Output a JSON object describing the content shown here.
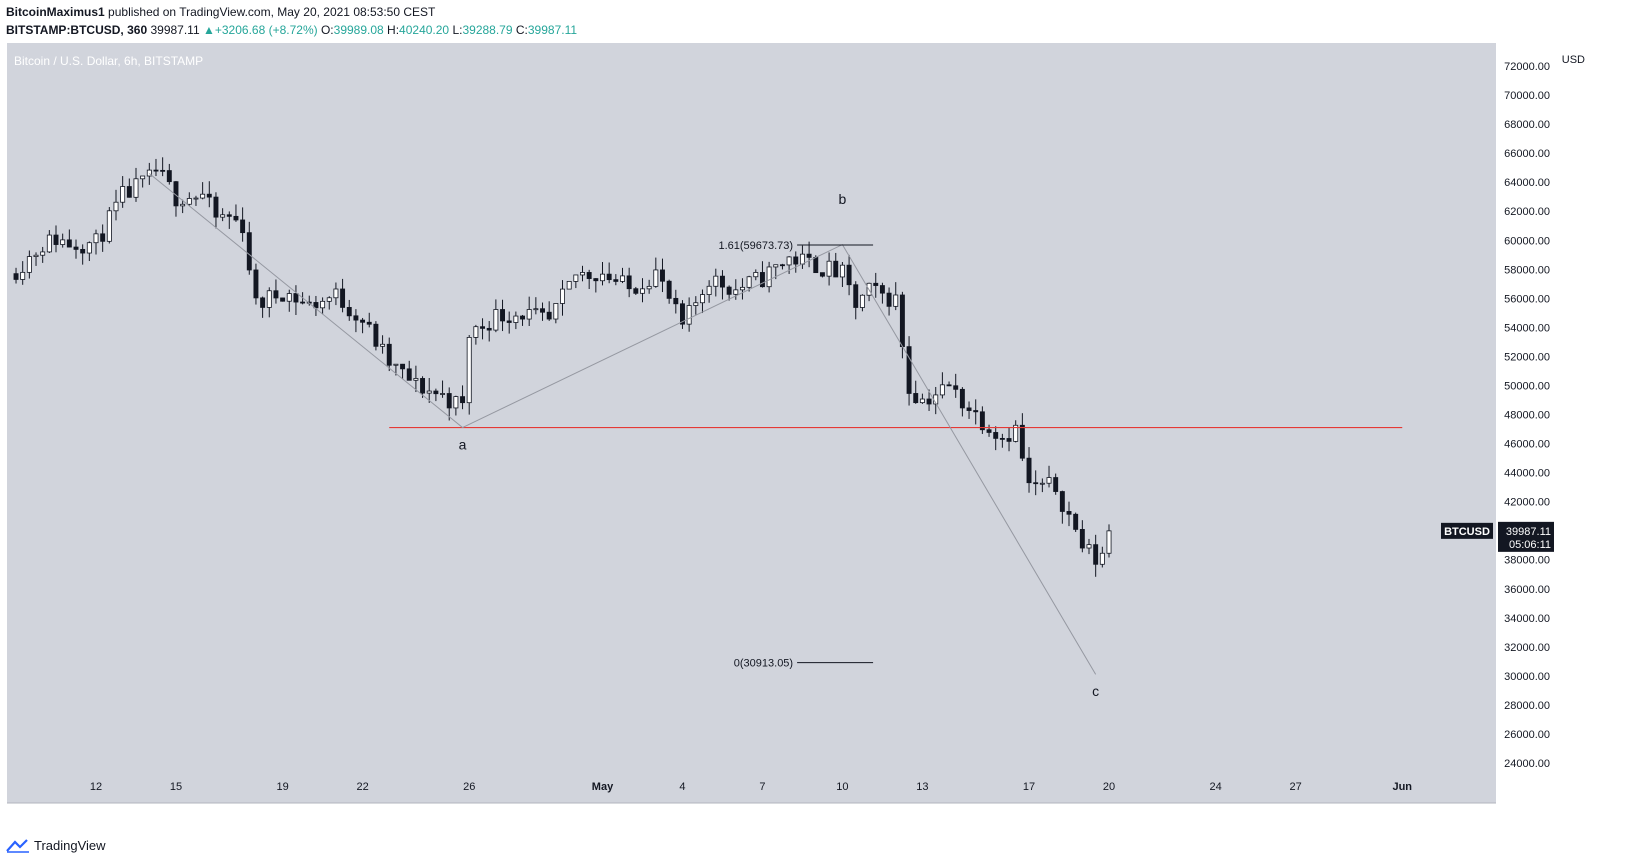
{
  "header": {
    "author": "BitcoinMaximus1",
    "published_text": "published on TradingView.com, May 20, 2021 08:53:50 CEST",
    "symbol": "BITSTAMP:BTCUSD, 360",
    "last": "39987.11",
    "change_arrow": "▲",
    "change": "+3206.68 (+8.72%)",
    "o_label": "O:",
    "o": "39989.08",
    "h_label": "H:",
    "h": "40240.20",
    "l_label": "L:",
    "l": "39288.79",
    "c_label": "C:",
    "c": "39987.11"
  },
  "footer": {
    "brand": "TradingView",
    "icon": "tradingview-logo-icon"
  },
  "colors": {
    "background": "#d1d4dc",
    "up": "#ffffff",
    "down": "#131722",
    "resistance": "#e53935",
    "wave": "#9598a1",
    "text": "#131722"
  },
  "chart_data": {
    "type": "candlestick",
    "title": "Bitcoin / U.S. Dollar, 6h, BITSTAMP",
    "currency_label": "USD",
    "ylim": [
      23000,
      73000
    ],
    "y_ticks": [
      24000,
      26000,
      28000,
      30000,
      32000,
      34000,
      36000,
      38000,
      40000,
      42000,
      44000,
      46000,
      48000,
      50000,
      52000,
      54000,
      56000,
      58000,
      60000,
      62000,
      64000,
      66000,
      68000,
      70000,
      72000
    ],
    "y_tick_labels": [
      "24000.00",
      "26000.00",
      "28000.00",
      "30000.00",
      "32000.00",
      "34000.00",
      "36000.00",
      "38000.00",
      "40000.00",
      "42000.00",
      "44000.00",
      "46000.00",
      "48000.00",
      "50000.00",
      "52000.00",
      "54000.00",
      "56000.00",
      "58000.00",
      "60000.00",
      "62000.00",
      "64000.00",
      "66000.00",
      "68000.00",
      "70000.00",
      "72000.00"
    ],
    "x_range": [
      "2021-04-09",
      "2021-06-01"
    ],
    "x_ticks": [
      {
        "date": "2021-04-12",
        "label": "12"
      },
      {
        "date": "2021-04-15",
        "label": "15"
      },
      {
        "date": "2021-04-19",
        "label": "19"
      },
      {
        "date": "2021-04-22",
        "label": "22"
      },
      {
        "date": "2021-04-26",
        "label": "26"
      },
      {
        "date": "2021-05-01",
        "label": "May"
      },
      {
        "date": "2021-05-04",
        "label": "4"
      },
      {
        "date": "2021-05-07",
        "label": "7"
      },
      {
        "date": "2021-05-10",
        "label": "10"
      },
      {
        "date": "2021-05-13",
        "label": "13"
      },
      {
        "date": "2021-05-17",
        "label": "17"
      },
      {
        "date": "2021-05-20",
        "label": "20"
      },
      {
        "date": "2021-05-24",
        "label": "24"
      },
      {
        "date": "2021-05-27",
        "label": "27"
      },
      {
        "date": "2021-05-31",
        "label": "Jun"
      }
    ],
    "candle_interval": "6h",
    "close_path": [
      {
        "date": "2021-04-09",
        "close": 58000
      },
      {
        "date": "2021-04-10",
        "close": 59700
      },
      {
        "date": "2021-04-10T12:00",
        "close": 60100
      },
      {
        "date": "2021-04-11",
        "close": 59800
      },
      {
        "date": "2021-04-12",
        "close": 59800
      },
      {
        "date": "2021-04-13",
        "close": 63000
      },
      {
        "date": "2021-04-14",
        "close": 64200
      },
      {
        "date": "2021-04-14T06:00",
        "close": 64800
      },
      {
        "date": "2021-04-15",
        "close": 63000
      },
      {
        "date": "2021-04-16",
        "close": 63100
      },
      {
        "date": "2021-04-16T12:00",
        "close": 61500
      },
      {
        "date": "2021-04-17",
        "close": 61600
      },
      {
        "date": "2021-04-17T12:00",
        "close": 61000
      },
      {
        "date": "2021-04-18",
        "close": 55500
      },
      {
        "date": "2021-04-19",
        "close": 56500
      },
      {
        "date": "2021-04-20",
        "close": 55500
      },
      {
        "date": "2021-04-21",
        "close": 56200
      },
      {
        "date": "2021-04-22",
        "close": 54500
      },
      {
        "date": "2021-04-23",
        "close": 51500
      },
      {
        "date": "2021-04-24",
        "close": 50000
      },
      {
        "date": "2021-04-25",
        "close": 49300
      },
      {
        "date": "2021-04-25T18:00",
        "close": 48500
      },
      {
        "date": "2021-04-26",
        "close": 53500
      },
      {
        "date": "2021-04-27",
        "close": 54800
      },
      {
        "date": "2021-04-28",
        "close": 55000
      },
      {
        "date": "2021-04-29",
        "close": 54300
      },
      {
        "date": "2021-04-30",
        "close": 57600
      },
      {
        "date": "2021-05-01",
        "close": 57800
      },
      {
        "date": "2021-05-02",
        "close": 56600
      },
      {
        "date": "2021-05-03",
        "close": 57800
      },
      {
        "date": "2021-05-04",
        "close": 54000
      },
      {
        "date": "2021-05-05",
        "close": 57400
      },
      {
        "date": "2021-05-06",
        "close": 56600
      },
      {
        "date": "2021-05-07",
        "close": 57400
      },
      {
        "date": "2021-05-08",
        "close": 58800
      },
      {
        "date": "2021-05-09",
        "close": 58300
      },
      {
        "date": "2021-05-10",
        "close": 57600
      },
      {
        "date": "2021-05-10T12:00",
        "close": 55500
      },
      {
        "date": "2021-05-11",
        "close": 56500
      },
      {
        "date": "2021-05-12",
        "close": 55900
      },
      {
        "date": "2021-05-12T12:00",
        "close": 49800
      },
      {
        "date": "2021-05-13",
        "close": 49000
      },
      {
        "date": "2021-05-14",
        "close": 49900
      },
      {
        "date": "2021-05-15",
        "close": 48000
      },
      {
        "date": "2021-05-16",
        "close": 46500
      },
      {
        "date": "2021-05-16T12:00",
        "close": 47000
      },
      {
        "date": "2021-05-17",
        "close": 43000
      },
      {
        "date": "2021-05-18",
        "close": 43000
      },
      {
        "date": "2021-05-19",
        "close": 39000
      },
      {
        "date": "2021-05-19T12:00",
        "close": 38000
      },
      {
        "date": "2021-05-19T18:00",
        "close": 38500
      },
      {
        "date": "2021-05-20",
        "close": 39987.11
      }
    ],
    "resistance_line": {
      "y": 47100,
      "from": "2021-04-23",
      "to": "2021-05-31"
    },
    "wave_path": [
      {
        "date": "2021-04-14",
        "value": 64600
      },
      {
        "date": "2021-04-25T18:00",
        "value": 47100
      },
      {
        "date": "2021-05-10",
        "value": 59700
      },
      {
        "date": "2021-05-19T12:00",
        "value": 30100
      }
    ],
    "wave_labels": [
      {
        "text": "a",
        "date": "2021-04-25T18:00",
        "value": 45600
      },
      {
        "text": "b",
        "date": "2021-05-10",
        "value": 62500
      },
      {
        "text": "c",
        "date": "2021-05-19T12:00",
        "value": 28600
      }
    ],
    "fib_levels": [
      {
        "label": "1.61(59673.73)",
        "value": 59673.73,
        "from": "2021-05-08",
        "to": "2021-05-11"
      },
      {
        "label": "0(30913.05)",
        "value": 30913.05,
        "from": "2021-05-08",
        "to": "2021-05-11"
      }
    ],
    "price_tag": {
      "symbol": "BTCUSD",
      "price": "39987.11",
      "countdown": "05:06:11",
      "value": 39987.11
    }
  }
}
